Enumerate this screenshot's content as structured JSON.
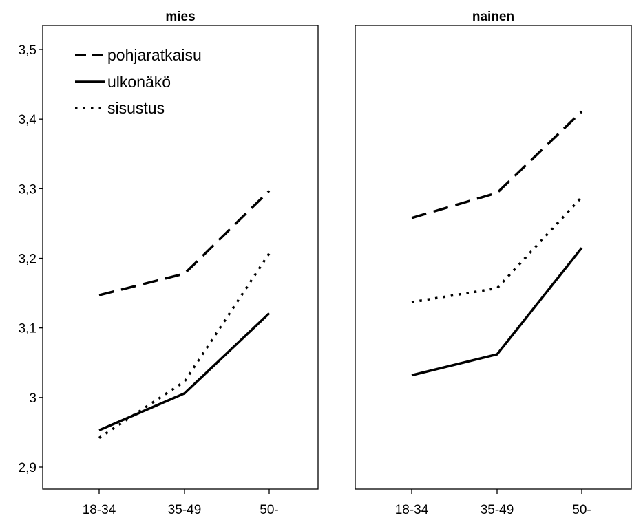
{
  "chart_data": {
    "type": "line",
    "categories": [
      "18-34",
      "35-49",
      "50-"
    ],
    "y_ticks": [
      "2,9",
      "3",
      "3,1",
      "3,2",
      "3,3",
      "3,4",
      "3,5"
    ],
    "y_tick_values": [
      2.9,
      3.0,
      3.1,
      3.2,
      3.3,
      3.4,
      3.5
    ],
    "ylim": [
      2.87,
      3.55
    ],
    "legend": {
      "placement": "top-left"
    },
    "panels": [
      {
        "title": "mies",
        "series": [
          {
            "name": "pohjaratkaisu",
            "style": "dashed",
            "values": [
              3.147,
              3.178,
              3.297
            ]
          },
          {
            "name": "ulkonäkö",
            "style": "solid",
            "values": [
              2.953,
              3.006,
              3.121
            ]
          },
          {
            "name": "sisustus",
            "style": "dotted",
            "values": [
              2.942,
              3.023,
              3.207
            ]
          }
        ]
      },
      {
        "title": "nainen",
        "series": [
          {
            "name": "pohjaratkaisu",
            "style": "dashed",
            "values": [
              3.258,
              3.294,
              3.411
            ]
          },
          {
            "name": "ulkonäkö",
            "style": "solid",
            "values": [
              3.032,
              3.062,
              3.215
            ]
          },
          {
            "name": "sisustus",
            "style": "dotted",
            "values": [
              3.137,
              3.157,
              3.288
            ]
          }
        ]
      }
    ]
  }
}
